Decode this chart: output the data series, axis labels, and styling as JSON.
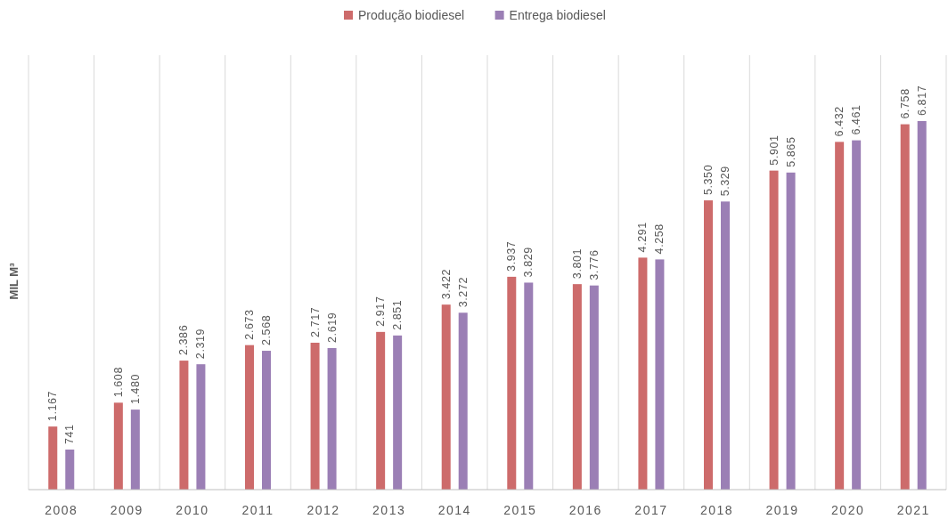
{
  "chart_data": {
    "type": "bar",
    "ylabel": "MIL M³",
    "categories": [
      "2008",
      "2009",
      "2010",
      "2011",
      "2012",
      "2013",
      "2014",
      "2015",
      "2016",
      "2017",
      "2018",
      "2019",
      "2020",
      "2021"
    ],
    "series": [
      {
        "name": "Produção biodiesel",
        "color": "#cd6b6b",
        "values": [
          1167,
          1608,
          2386,
          2673,
          2717,
          2917,
          3422,
          3937,
          3801,
          4291,
          5350,
          5901,
          6432,
          6758
        ],
        "value_labels": [
          "1.167",
          "1.608",
          "2.386",
          "2.673",
          "2.717",
          "2.917",
          "3.422",
          "3.937",
          "3.801",
          "4.291",
          "5.350",
          "5.901",
          "6.432",
          "6.758"
        ]
      },
      {
        "name": "Entrega biodiesel",
        "color": "#9b7fb5",
        "values": [
          741,
          1480,
          2319,
          2568,
          2619,
          2851,
          3272,
          3829,
          3776,
          4258,
          5329,
          5865,
          6461,
          6817
        ],
        "value_labels": [
          "741",
          "1.480",
          "2.319",
          "2.568",
          "2.619",
          "2.851",
          "3.272",
          "3.829",
          "3.776",
          "4.258",
          "5.329",
          "5.865",
          "6.461",
          "6.817"
        ]
      }
    ],
    "grid": "x",
    "legend": "top"
  }
}
